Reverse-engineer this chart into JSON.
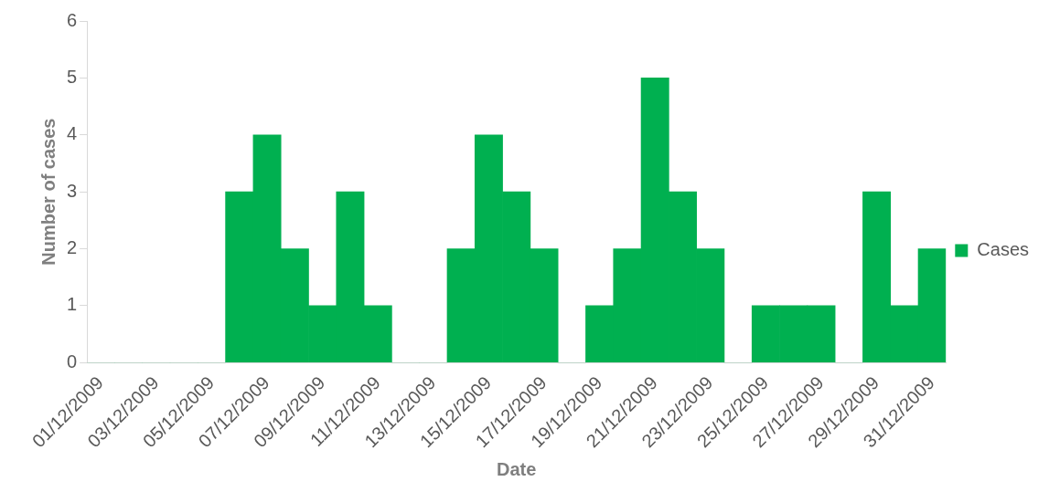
{
  "chart_data": {
    "type": "bar",
    "xlabel": "Date",
    "ylabel": "Number of cases",
    "categories": [
      "01/12/2009",
      null,
      "03/12/2009",
      null,
      "05/12/2009",
      null,
      "07/12/2009",
      null,
      "09/12/2009",
      null,
      "11/12/2009",
      null,
      "13/12/2009",
      null,
      "15/12/2009",
      null,
      "17/12/2009",
      null,
      "19/12/2009",
      null,
      "21/12/2009",
      null,
      "23/12/2009",
      null,
      "25/12/2009",
      null,
      "27/12/2009",
      null,
      "29/12/2009",
      null,
      "31/12/2009"
    ],
    "series": [
      {
        "name": "Cases",
        "color": "#00b050",
        "values": [
          0,
          0,
          0,
          0,
          0,
          3,
          4,
          2,
          1,
          3,
          1,
          0,
          0,
          2,
          4,
          3,
          2,
          0,
          1,
          2,
          5,
          3,
          2,
          0,
          1,
          1,
          1,
          0,
          3,
          1,
          2
        ]
      }
    ],
    "ylim": [
      0,
      6
    ],
    "yticks": [
      0,
      1,
      2,
      3,
      4,
      5,
      6
    ],
    "grid": false,
    "legend": "right"
  }
}
